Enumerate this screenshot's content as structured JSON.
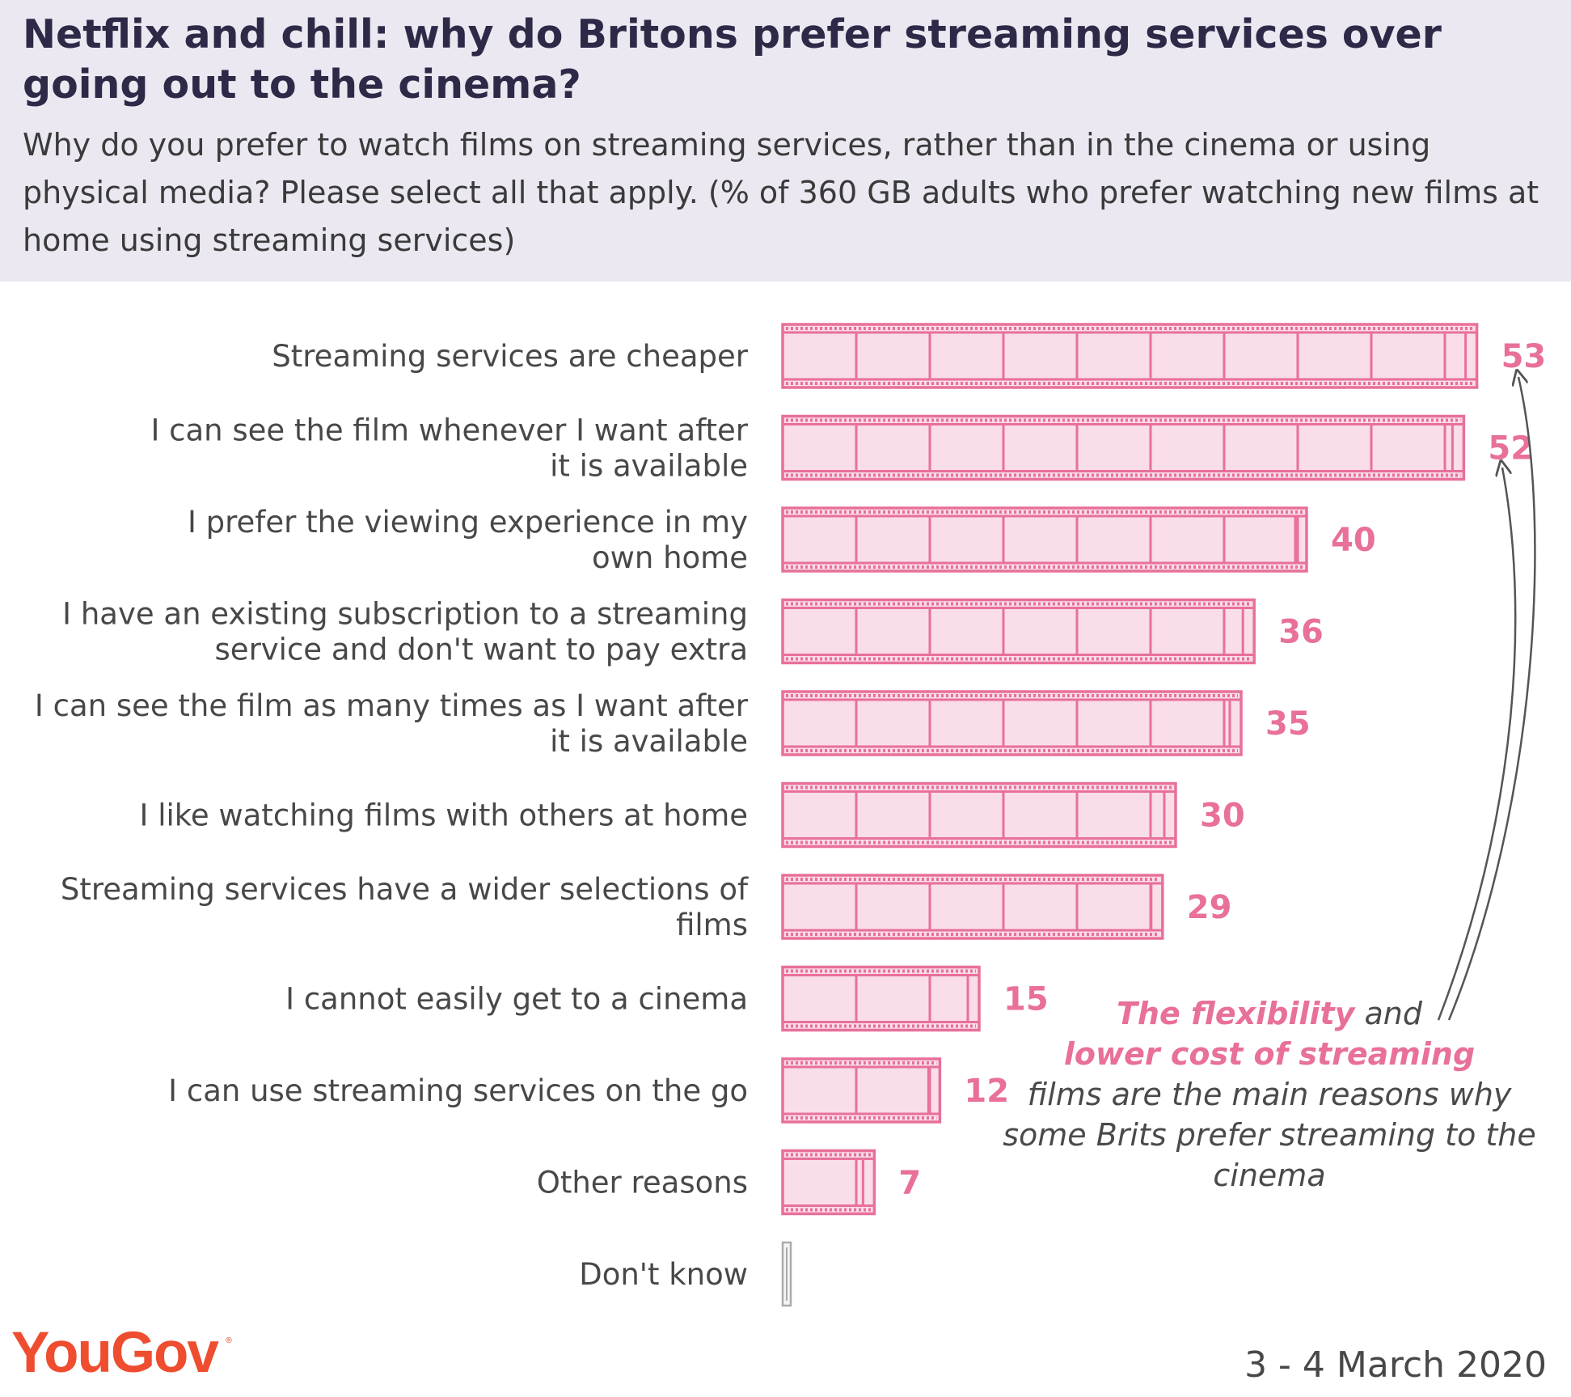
{
  "header": {
    "title": "Netflix and chill: why do Britons prefer streaming services over going out to the cinema?",
    "subtitle": "Why do you prefer to watch films on streaming services, rather than in the cinema or using physical media? Please select all that apply. (% of 360 GB adults who prefer watching new films at home using streaming services)"
  },
  "chart_data": {
    "type": "bar",
    "orientation": "horizontal",
    "categories": [
      "Streaming services are cheaper",
      "I can see the film whenever I want after it is available",
      "I prefer the viewing experience in my own home",
      "I have an existing subscription to a streaming service and don't want to pay extra",
      "I can see the film as many times as I want after it is available",
      "I like watching films with others at home",
      "Streaming services have a wider selections of films",
      "I cannot easily get to a cinema",
      "I can use streaming services on the go",
      "Other reasons",
      "Don't know"
    ],
    "category_lines": [
      [
        "Streaming services are cheaper"
      ],
      [
        "I can see the film whenever I want after",
        "it is available"
      ],
      [
        "I prefer the viewing experience in my",
        "own home"
      ],
      [
        "I have an existing subscription to a streaming",
        "service and don't want to pay extra"
      ],
      [
        "I can see the film as many times as I want after",
        "it is available"
      ],
      [
        "I like watching films with others at home"
      ],
      [
        "Streaming services have a wider selections of",
        "films"
      ],
      [
        "I cannot easily get to a cinema"
      ],
      [
        "I can use streaming services on the go"
      ],
      [
        "Other reasons"
      ],
      [
        "Don't know"
      ]
    ],
    "values": [
      53,
      52,
      40,
      36,
      35,
      30,
      29,
      15,
      12,
      7,
      0
    ],
    "value_labels": [
      "53",
      "52",
      "40",
      "36",
      "35",
      "30",
      "29",
      "15",
      "12",
      "7",
      ""
    ],
    "xlim": [
      0,
      60
    ],
    "grid": false,
    "bar_style": "film strip",
    "colors": {
      "bar": "#e8709a",
      "bar_fill": "#f9dde9",
      "zero_bar": "#aaaaaa",
      "value_text": "#e8709a"
    }
  },
  "annotation": {
    "highlight_1": "The flexibility",
    "text_1": " and ",
    "highlight_2": "lower cost of streaming",
    "text_2": "films are the main reasons why some Brits prefer streaming to the cinema"
  },
  "footer": {
    "logo": "YouGov",
    "logo_mark": "®",
    "date": "3 - 4 March 2020"
  }
}
